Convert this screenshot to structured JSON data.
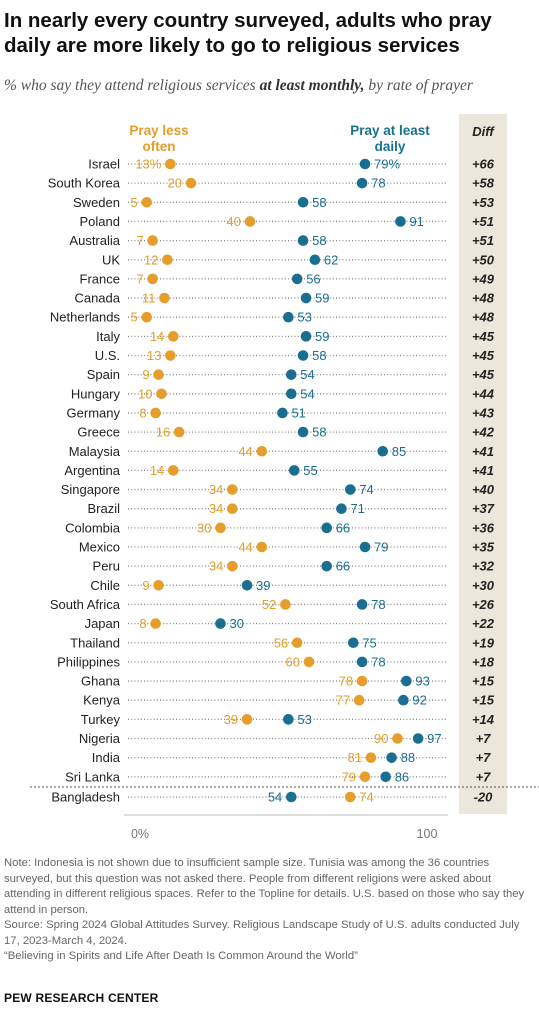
{
  "title": "In nearly every country surveyed, adults who pray daily are more likely to go to religious services",
  "subtitle": {
    "before": "% who say they attend religious services ",
    "bold": "at least monthly,",
    "after": " by rate of prayer"
  },
  "colors": {
    "less_often": "#e69d2c",
    "daily": "#1a6f91",
    "diff_bg": "#ece7db"
  },
  "chart_data": {
    "type": "dot",
    "series": [
      {
        "name": "Pray less often",
        "color": "#e69d2c"
      },
      {
        "name": "Pray at least daily",
        "color": "#1a6f91"
      }
    ],
    "legend_less_often": [
      "Pray less",
      "often"
    ],
    "legend_daily": [
      "Pray at least",
      "daily"
    ],
    "diff_header": "Diff",
    "xlim": [
      0,
      100
    ],
    "x_ticks": [
      "0%",
      "100"
    ],
    "rows": [
      {
        "country": "Israel",
        "less_often": 13,
        "less_label": "13%",
        "daily": 79,
        "daily_label": "79%",
        "diff": "+66"
      },
      {
        "country": "South Korea",
        "less_often": 20,
        "less_label": "20",
        "daily": 78,
        "daily_label": "78",
        "diff": "+58"
      },
      {
        "country": "Sweden",
        "less_often": 5,
        "less_label": "5",
        "daily": 58,
        "daily_label": "58",
        "diff": "+53"
      },
      {
        "country": "Poland",
        "less_often": 40,
        "less_label": "40",
        "daily": 91,
        "daily_label": "91",
        "diff": "+51"
      },
      {
        "country": "Australia",
        "less_often": 7,
        "less_label": "7",
        "daily": 58,
        "daily_label": "58",
        "diff": "+51"
      },
      {
        "country": "UK",
        "less_often": 12,
        "less_label": "12",
        "daily": 62,
        "daily_label": "62",
        "diff": "+50"
      },
      {
        "country": "France",
        "less_often": 7,
        "less_label": "7",
        "daily": 56,
        "daily_label": "56",
        "diff": "+49"
      },
      {
        "country": "Canada",
        "less_often": 11,
        "less_label": "11",
        "daily": 59,
        "daily_label": "59",
        "diff": "+48"
      },
      {
        "country": "Netherlands",
        "less_often": 5,
        "less_label": "5",
        "daily": 53,
        "daily_label": "53",
        "diff": "+48"
      },
      {
        "country": "Italy",
        "less_often": 14,
        "less_label": "14",
        "daily": 59,
        "daily_label": "59",
        "diff": "+45"
      },
      {
        "country": "U.S.",
        "less_often": 13,
        "less_label": "13",
        "daily": 58,
        "daily_label": "58",
        "diff": "+45"
      },
      {
        "country": "Spain",
        "less_often": 9,
        "less_label": "9",
        "daily": 54,
        "daily_label": "54",
        "diff": "+45"
      },
      {
        "country": "Hungary",
        "less_often": 10,
        "less_label": "10",
        "daily": 54,
        "daily_label": "54",
        "diff": "+44"
      },
      {
        "country": "Germany",
        "less_often": 8,
        "less_label": "8",
        "daily": 51,
        "daily_label": "51",
        "diff": "+43"
      },
      {
        "country": "Greece",
        "less_often": 16,
        "less_label": "16",
        "daily": 58,
        "daily_label": "58",
        "diff": "+42"
      },
      {
        "country": "Malaysia",
        "less_often": 44,
        "less_label": "44",
        "daily": 85,
        "daily_label": "85",
        "diff": "+41"
      },
      {
        "country": "Argentina",
        "less_often": 14,
        "less_label": "14",
        "daily": 55,
        "daily_label": "55",
        "diff": "+41"
      },
      {
        "country": "Singapore",
        "less_often": 34,
        "less_label": "34",
        "daily": 74,
        "daily_label": "74",
        "diff": "+40"
      },
      {
        "country": "Brazil",
        "less_often": 34,
        "less_label": "34",
        "daily": 71,
        "daily_label": "71",
        "diff": "+37"
      },
      {
        "country": "Colombia",
        "less_often": 30,
        "less_label": "30",
        "daily": 66,
        "daily_label": "66",
        "diff": "+36"
      },
      {
        "country": "Mexico",
        "less_often": 44,
        "less_label": "44",
        "daily": 79,
        "daily_label": "79",
        "diff": "+35"
      },
      {
        "country": "Peru",
        "less_often": 34,
        "less_label": "34",
        "daily": 66,
        "daily_label": "66",
        "diff": "+32"
      },
      {
        "country": "Chile",
        "less_often": 9,
        "less_label": "9",
        "daily": 39,
        "daily_label": "39",
        "diff": "+30"
      },
      {
        "country": "South Africa",
        "less_often": 52,
        "less_label": "52",
        "daily": 78,
        "daily_label": "78",
        "diff": "+26"
      },
      {
        "country": "Japan",
        "less_often": 8,
        "less_label": "8",
        "daily": 30,
        "daily_label": "30",
        "diff": "+22"
      },
      {
        "country": "Thailand",
        "less_often": 56,
        "less_label": "56",
        "daily": 75,
        "daily_label": "75",
        "diff": "+19"
      },
      {
        "country": "Philippines",
        "less_often": 60,
        "less_label": "60",
        "daily": 78,
        "daily_label": "78",
        "diff": "+18"
      },
      {
        "country": "Ghana",
        "less_often": 78,
        "less_label": "78",
        "daily": 93,
        "daily_label": "93",
        "diff": "+15"
      },
      {
        "country": "Kenya",
        "less_often": 77,
        "less_label": "77",
        "daily": 92,
        "daily_label": "92",
        "diff": "+15"
      },
      {
        "country": "Turkey",
        "less_often": 39,
        "less_label": "39",
        "daily": 53,
        "daily_label": "53",
        "diff": "+14"
      },
      {
        "country": "Nigeria",
        "less_often": 90,
        "less_label": "90",
        "daily": 97,
        "daily_label": "97",
        "diff": "+7"
      },
      {
        "country": "India",
        "less_often": 81,
        "less_label": "81",
        "daily": 88,
        "daily_label": "88",
        "diff": "+7"
      },
      {
        "country": "Sri Lanka",
        "less_often": 79,
        "less_label": "79",
        "daily": 86,
        "daily_label": "86",
        "diff": "+7"
      },
      {
        "country": "Bangladesh",
        "less_often": 74,
        "less_label": "74",
        "daily": 54,
        "daily_label": "54",
        "diff": "-20"
      }
    ]
  },
  "notes": {
    "note": "Note: Indonesia is not shown due to insufficient sample size. Tunisia was among the 36 countries surveyed, but this question was not asked there. People from different religions were asked about attending in different religious spaces. Refer to the Topline for details. U.S. based on those who say they attend in person.",
    "source": "Source: Spring 2024 Global Attitudes Survey. Religious Landscape Study of U.S. adults conducted July 17, 2023-March 4, 2024.",
    "report": "“Believing in Spirits and Life After Death Is Common Around the World”"
  },
  "footer": "PEW RESEARCH CENTER"
}
